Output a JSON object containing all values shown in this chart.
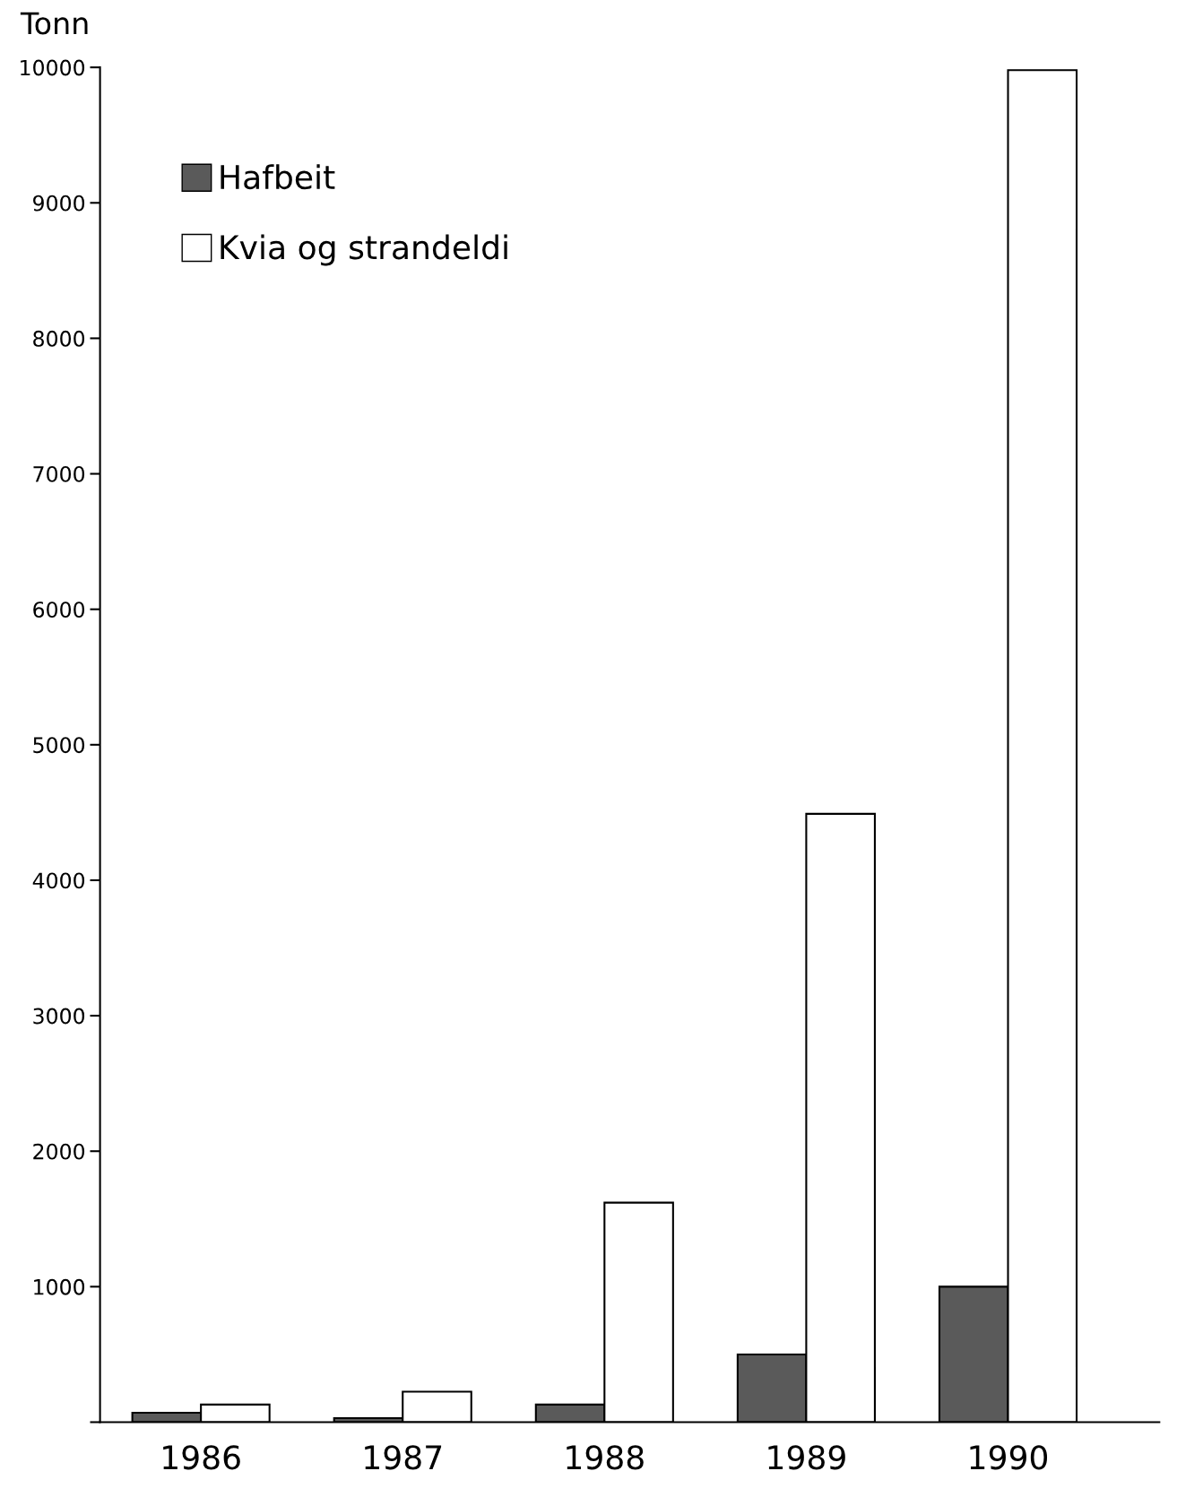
{
  "chart_data": {
    "type": "bar",
    "ylabel": "Tonn",
    "categories": [
      "1986",
      "1987",
      "1988",
      "1989",
      "1990"
    ],
    "series": [
      {
        "name": "Hafbeit",
        "color": "#5a5a5a",
        "values": [
          70,
          30,
          130,
          500,
          1000
        ]
      },
      {
        "name": "Kvia og strandeldi",
        "color": "#ffffff",
        "values": [
          130,
          225,
          1620,
          4490,
          9980
        ]
      }
    ],
    "ylim": [
      0,
      10000
    ],
    "yticks": [
      {
        "value": 0,
        "label": null
      },
      1000,
      2000,
      3000,
      4000,
      5000,
      6000,
      7000,
      8000,
      9000,
      10000
    ],
    "grid": false,
    "legend": "top left"
  }
}
